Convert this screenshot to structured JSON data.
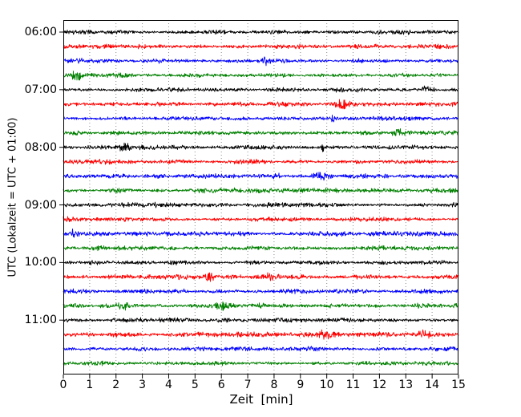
{
  "figure": {
    "background": "#ffffff",
    "border_color": "#000000",
    "tick_color": "#000000"
  },
  "chart_data": {
    "type": "line",
    "subtype": "helicorder-seismogram",
    "title": "",
    "xlabel": "Zeit  [min]",
    "ylabel": "UTC (Lokalzeit = UTC + 01:00)",
    "xlim": [
      0,
      15
    ],
    "x_ticks": [
      0,
      1,
      2,
      3,
      4,
      5,
      6,
      7,
      8,
      9,
      10,
      11,
      12,
      13,
      14,
      15
    ],
    "y_tick_labels": [
      "06:00",
      "07:00",
      "08:00",
      "09:00",
      "10:00",
      "11:00"
    ],
    "minutes_per_row": 15,
    "rows_per_hour": 4,
    "grid": {
      "vertical": true,
      "horizontal": false,
      "style": "dotted",
      "color": "#8a8a8a"
    },
    "trace_colors_cycle": [
      "#000000",
      "#ff0000",
      "#0000ff",
      "#008000"
    ],
    "traces": [
      {
        "start": "06:00",
        "color": "#000000"
      },
      {
        "start": "06:15",
        "color": "#ff0000"
      },
      {
        "start": "06:30",
        "color": "#0000ff"
      },
      {
        "start": "06:45",
        "color": "#008000"
      },
      {
        "start": "07:00",
        "color": "#000000"
      },
      {
        "start": "07:15",
        "color": "#ff0000"
      },
      {
        "start": "07:30",
        "color": "#0000ff"
      },
      {
        "start": "07:45",
        "color": "#008000"
      },
      {
        "start": "08:00",
        "color": "#000000"
      },
      {
        "start": "08:15",
        "color": "#ff0000"
      },
      {
        "start": "08:30",
        "color": "#0000ff"
      },
      {
        "start": "08:45",
        "color": "#008000"
      },
      {
        "start": "09:00",
        "color": "#000000"
      },
      {
        "start": "09:15",
        "color": "#ff0000"
      },
      {
        "start": "09:30",
        "color": "#0000ff"
      },
      {
        "start": "09:45",
        "color": "#008000"
      },
      {
        "start": "10:00",
        "color": "#000000"
      },
      {
        "start": "10:15",
        "color": "#ff0000"
      },
      {
        "start": "10:30",
        "color": "#0000ff"
      },
      {
        "start": "10:45",
        "color": "#008000"
      },
      {
        "start": "11:00",
        "color": "#000000"
      },
      {
        "start": "11:15",
        "color": "#ff0000"
      },
      {
        "start": "11:30",
        "color": "#0000ff"
      },
      {
        "start": "11:45",
        "color": "#008000"
      }
    ],
    "noise": {
      "seed": 20240607,
      "base_amplitude": 1.3,
      "description": "continuous background seismic noise, no large events"
    }
  }
}
